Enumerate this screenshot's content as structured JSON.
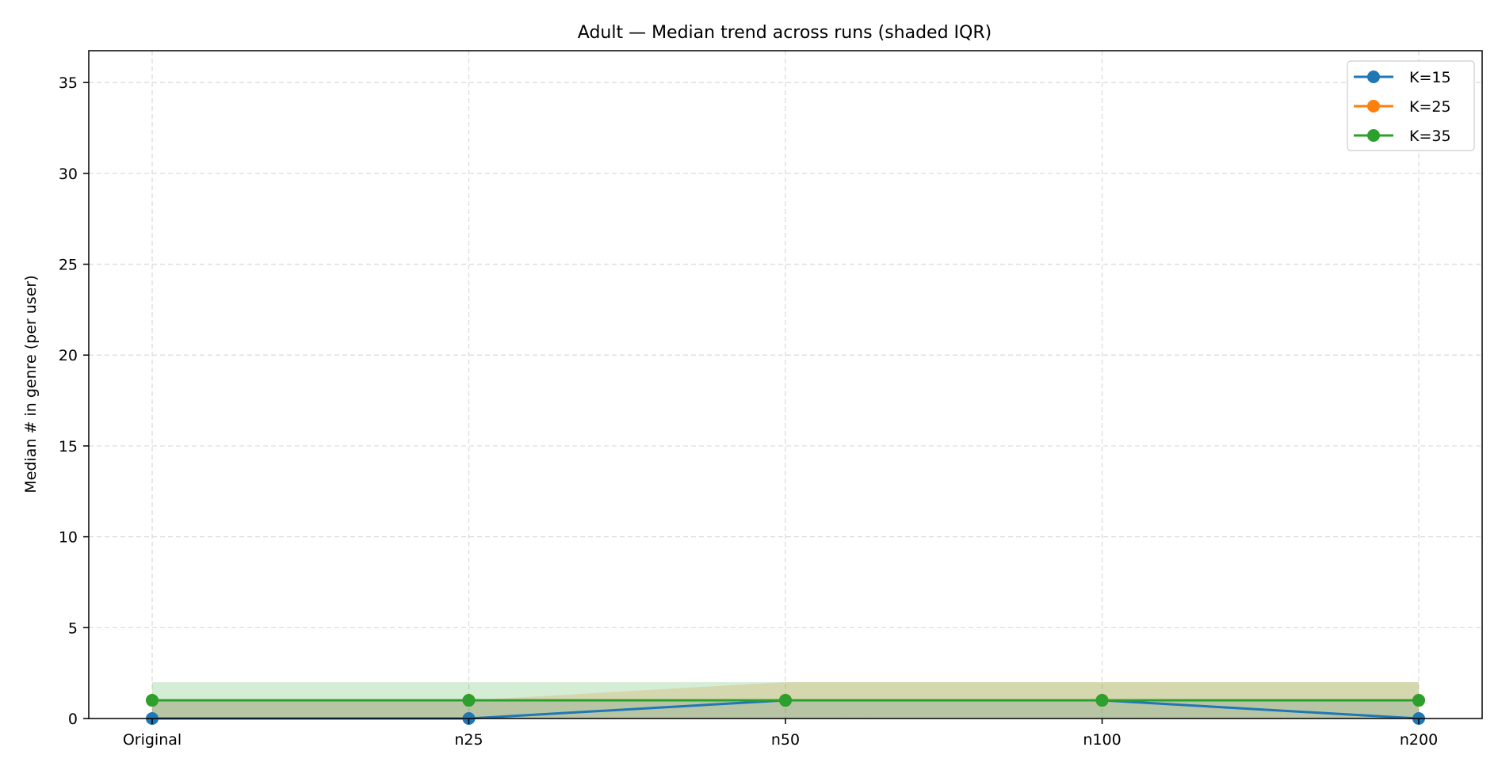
{
  "chart_data": {
    "type": "line",
    "title": "Adult — Median trend across runs (shaded IQR)",
    "xlabel": "",
    "ylabel": "Median # in genre (per user)",
    "categories": [
      "Original",
      "n25",
      "n50",
      "n100",
      "n200"
    ],
    "ylim": [
      0,
      36.75
    ],
    "yticks": [
      0,
      5,
      10,
      15,
      20,
      25,
      30,
      35
    ],
    "grid": true,
    "legend_position": "top-right",
    "series": [
      {
        "name": "K=15",
        "color": "#1f77b4",
        "values": [
          0,
          0,
          1,
          1,
          0
        ],
        "iqr_low": [
          0,
          0,
          0,
          0,
          0
        ],
        "iqr_high": [
          1,
          1,
          1,
          1,
          1
        ]
      },
      {
        "name": "K=25",
        "color": "#ff7f0e",
        "values": [
          1,
          1,
          1,
          1,
          1
        ],
        "iqr_low": [
          0,
          0,
          0,
          0,
          0
        ],
        "iqr_high": [
          1,
          1,
          2,
          2,
          2
        ]
      },
      {
        "name": "K=35",
        "color": "#2ca02c",
        "values": [
          1,
          1,
          1,
          1,
          1
        ],
        "iqr_low": [
          0,
          0,
          0,
          0,
          0
        ],
        "iqr_high": [
          2,
          2,
          2,
          2,
          2
        ]
      }
    ]
  }
}
